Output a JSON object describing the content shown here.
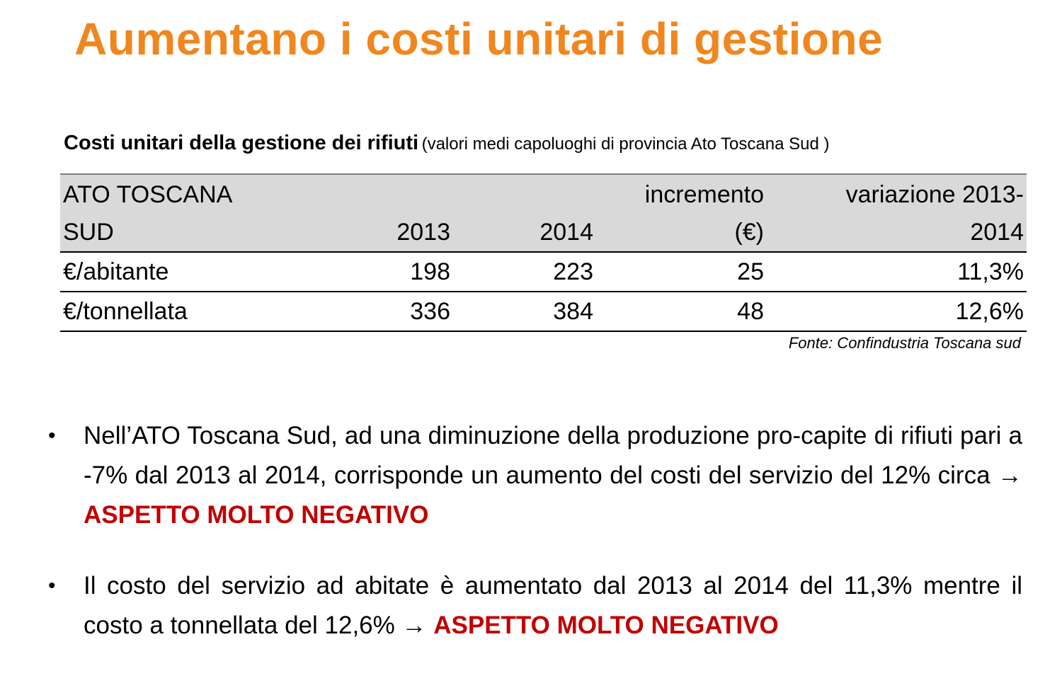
{
  "page": {
    "title": "Aumentano i costi unitari di gestione",
    "title_color": "#f0861e",
    "highlight_color": "#c00000"
  },
  "table": {
    "caption_bold": "Costi unitari della gestione dei rifiuti",
    "caption_normal": "(valori medi capoluoghi di provincia Ato Toscana Sud )",
    "headers": [
      [
        "ATO TOSCANA",
        "SUD"
      ],
      [
        "",
        "2013"
      ],
      [
        "",
        "2014"
      ],
      [
        "incremento",
        "(€)"
      ],
      [
        "variazione 2013-",
        "2014"
      ]
    ],
    "rows": [
      [
        "€/abitante",
        "198",
        "223",
        "25",
        "11,3%"
      ],
      [
        "€/tonnellata",
        "336",
        "384",
        "48",
        "12,6%"
      ]
    ],
    "source": "Fonte: Confindustria Toscana sud"
  },
  "bullets": [
    {
      "marker": "•",
      "text": "Nell’ATO Toscana Sud, ad una diminuzione della produzione pro-capite di rifiuti pari a -7% dal 2013 al 2014, corrisponde un aumento del costi del servizio del 12% circa",
      "arrow": "→",
      "highlight": "ASPETTO MOLTO NEGATIVO"
    },
    {
      "marker": "•",
      "text": "Il costo del servizio ad abitate è aumentato dal 2013 al 2014 del 11,3% mentre il costo a tonnellata del 12,6%",
      "arrow": "→",
      "highlight": "ASPETTO MOLTO NEGATIVO"
    }
  ]
}
